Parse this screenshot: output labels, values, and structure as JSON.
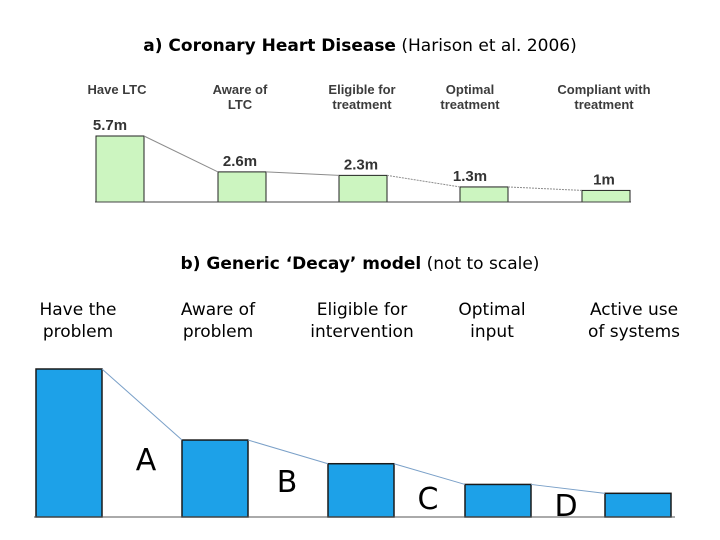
{
  "chart_data": [
    {
      "type": "bar",
      "title_bold": "a) Coronary Heart Disease",
      "title_normal": "(Harison et al. 2006)",
      "categories": [
        "Have LTC",
        "Aware of LTC",
        "Eligible for treatment",
        "Optimal treatment",
        "Compliant with treatment"
      ],
      "category_lines": [
        [
          "Have LTC"
        ],
        [
          "Aware of",
          "LTC"
        ],
        [
          "Eligible for",
          "treatment"
        ],
        [
          "Optimal",
          "treatment"
        ],
        [
          "Compliant with",
          "treatment"
        ]
      ],
      "values": [
        5.7,
        2.6,
        2.3,
        1.3,
        1.0
      ],
      "data_labels": [
        "5.7m",
        "2.6m",
        "2.3m",
        "1.3m",
        "1m"
      ],
      "unit": "million",
      "colors": {
        "bar_fill": "#ccf5c0",
        "bar_stroke": "#222222",
        "connector": "#8c8c8c"
      }
    },
    {
      "type": "bar",
      "title_bold": "b) Generic ‘Decay’ model",
      "title_normal": "(not to scale)",
      "categories": [
        "Have the problem",
        "Aware of problem",
        "Eligible for intervention",
        "Optimal input",
        "Active use of systems"
      ],
      "category_lines": [
        [
          "Have the",
          "problem"
        ],
        [
          "Aware of",
          "problem"
        ],
        [
          "Eligible for",
          "intervention"
        ],
        [
          "Optimal",
          "input"
        ],
        [
          "Active use",
          "of systems"
        ]
      ],
      "values": [
        5,
        2.6,
        1.8,
        1.1,
        0.8
      ],
      "gap_labels": [
        "A",
        "B",
        "C",
        "D"
      ],
      "colors": {
        "bar_fill": "#1da1e8",
        "bar_stroke": "#1a1a1a",
        "connector": "#7aa0c8"
      }
    }
  ]
}
